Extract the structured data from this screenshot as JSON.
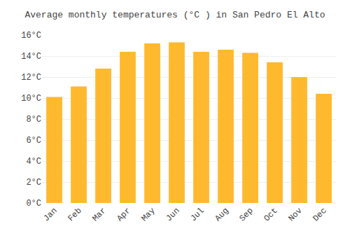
{
  "chart_data": {
    "type": "bar",
    "title": "Average monthly temperatures (°C ) in San Pedro El Alto",
    "categories": [
      "Jan",
      "Feb",
      "Mar",
      "Apr",
      "May",
      "Jun",
      "Jul",
      "Aug",
      "Sep",
      "Oct",
      "Nov",
      "Dec"
    ],
    "values": [
      10.1,
      11.1,
      12.8,
      14.4,
      15.2,
      15.3,
      14.4,
      14.6,
      14.3,
      13.4,
      12.0,
      10.4
    ],
    "color": "#FFB92E",
    "ylim": [
      0,
      16
    ],
    "yticks": [
      {
        "value": 0,
        "label": "0°C"
      },
      {
        "value": 2,
        "label": "2°C"
      },
      {
        "value": 4,
        "label": "4°C"
      },
      {
        "value": 6,
        "label": "6°C"
      },
      {
        "value": 8,
        "label": "8°C"
      },
      {
        "value": 10,
        "label": "10°C"
      },
      {
        "value": 12,
        "label": "12°C"
      },
      {
        "value": 14,
        "label": "14°C"
      },
      {
        "value": 16,
        "label": "16°C"
      }
    ],
    "grid": true
  }
}
